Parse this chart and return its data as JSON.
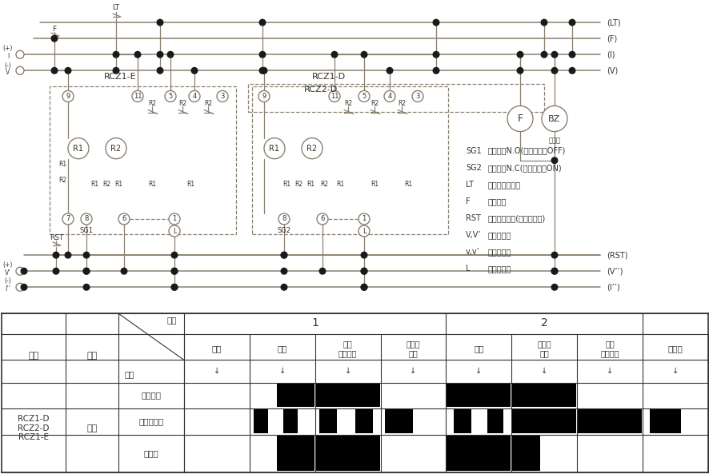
{
  "circuit_color": "#8B8070",
  "bus_color": "#8B8070",
  "dot_color": "#1a1a1a",
  "text_color": "#333333",
  "legend_items": [
    [
      "SG1",
      "报警接点N.O(正常时接点OFF)"
    ],
    [
      "SG2",
      "报警接点N.C(正常时接点ON)"
    ],
    [
      "LT",
      "指示灯测试开关"
    ],
    [
      "F",
      "闪烁接点"
    ],
    [
      "RST",
      "报警停止开关(蜂鸣器停止)"
    ],
    [
      "V,V’",
      "继电器电源"
    ],
    [
      "v,v’",
      "指示灯电源"
    ],
    [
      "L",
      "报警指示灯"
    ]
  ],
  "table_col_labels": [
    "正常",
    "报警",
    "报警\n自然恢复",
    "蜂鸣音\n停止",
    "报警",
    "蜂鸣音\n停止",
    "报警\n自然恢复",
    "灯测试"
  ],
  "row_signal_labels": [
    "报警输入",
    "报警显示灯",
    "蜂鸣器"
  ]
}
